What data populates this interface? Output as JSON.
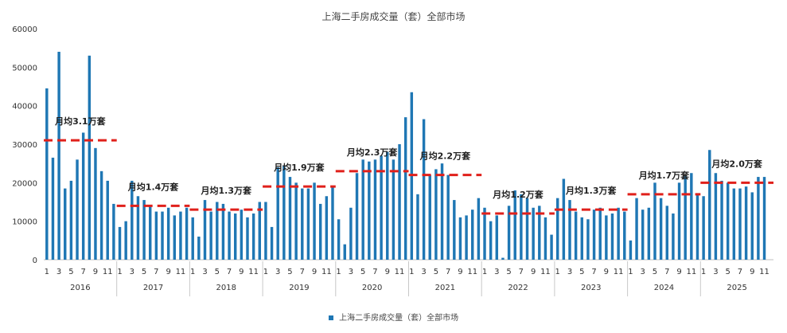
{
  "chart_data": {
    "type": "bar",
    "title": "上海二手房成交量（套）全部市场",
    "legend": "上海二手房成交量（套）全部市场",
    "legend_position": "bottom",
    "ylim": [
      0,
      60000
    ],
    "yticks": [
      0,
      10000,
      20000,
      30000,
      40000,
      50000,
      60000
    ],
    "colors": {
      "bar": "#1f77b4",
      "avg_line": "#e0201b"
    },
    "years": [
      "2016",
      "2017",
      "2018",
      "2019",
      "2020",
      "2021",
      "2022",
      "2023",
      "2024",
      "2025"
    ],
    "month_ticks": [
      "1",
      "3",
      "5",
      "7",
      "9",
      "11"
    ],
    "series": [
      {
        "values": [
          44500,
          26500,
          54000,
          18500,
          20500,
          26000,
          33000,
          53000,
          29000,
          23000,
          20500,
          14500,
          8500,
          10000,
          20500,
          16500,
          15500,
          14000,
          12500,
          12500,
          13500,
          11500,
          12500,
          13500,
          11000,
          6000,
          15500,
          12500,
          15000,
          14500,
          12500,
          12000,
          13000,
          11000,
          12000,
          15000,
          15000,
          8500,
          24000,
          24500,
          21500,
          20000,
          18500,
          18500,
          20000,
          14500,
          16500,
          19000,
          10500,
          4000,
          13500,
          22500,
          26000,
          25500,
          26000,
          27000,
          28000,
          26000,
          30000,
          37000,
          43500,
          17000,
          36500,
          22000,
          23500,
          25000,
          22000,
          15500,
          11000,
          11500,
          13000,
          16000,
          13500,
          10000,
          11500,
          500,
          14000,
          18000,
          17000,
          16000,
          13500,
          14000,
          11000,
          6500,
          16000,
          21000,
          15500,
          12500,
          11000,
          10500,
          13000,
          13500,
          11500,
          12000,
          13500,
          12500,
          5000,
          16000,
          13000,
          13500,
          20000,
          16000,
          14000,
          12000,
          20000,
          22000,
          22500,
          17000,
          16500,
          28500,
          22500,
          20500,
          20000,
          18500,
          18500,
          19000,
          17500,
          21500,
          21500
        ]
      }
    ],
    "averages": [
      {
        "label": "月均3.1万套",
        "value": 31000,
        "year": "2016"
      },
      {
        "label": "月均1.4万套",
        "value": 14000,
        "year": "2017"
      },
      {
        "label": "月均1.3万套",
        "value": 13000,
        "year": "2018"
      },
      {
        "label": "月均1.9万套",
        "value": 19000,
        "year": "2019"
      },
      {
        "label": "月均2.3万套",
        "value": 23000,
        "year": "2020"
      },
      {
        "label": "月均2.2万套",
        "value": 22000,
        "year": "2021"
      },
      {
        "label": "月均1.2万套",
        "value": 12000,
        "year": "2022"
      },
      {
        "label": "月均1.3万套",
        "value": 13000,
        "year": "2023"
      },
      {
        "label": "月均1.7万套",
        "value": 17000,
        "year": "2024"
      },
      {
        "label": "月均2.0万套",
        "value": 20000,
        "year": "2025"
      }
    ]
  }
}
